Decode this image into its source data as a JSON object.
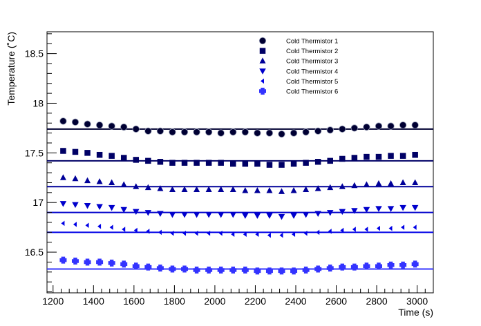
{
  "chart_data": {
    "type": "scatter",
    "title": "",
    "xlabel": "Time (s)",
    "ylabel": "Temperature (˚C)",
    "xlim": [
      1170,
      3080
    ],
    "ylim": [
      16.09,
      18.72
    ],
    "x_ticks": [
      1200,
      1400,
      1600,
      1800,
      2000,
      2200,
      2400,
      2600,
      2800,
      3000
    ],
    "x_tick_labels": [
      "1200",
      "1400",
      "1600",
      "1800",
      "2000",
      "2200",
      "2400",
      "2600",
      "2800",
      "3000"
    ],
    "y_ticks": [
      16.5,
      17,
      17.5,
      18,
      18.5
    ],
    "y_tick_labels": [
      "16.5",
      "17",
      "17.5",
      "18",
      "18.5"
    ],
    "grid": false,
    "legend_position": "top-right",
    "x": [
      1250,
      1310,
      1370,
      1430,
      1490,
      1550,
      1610,
      1670,
      1730,
      1790,
      1850,
      1910,
      1970,
      2030,
      2090,
      2150,
      2210,
      2270,
      2330,
      2390,
      2450,
      2510,
      2570,
      2630,
      2690,
      2750,
      2810,
      2870,
      2930,
      2990
    ],
    "series": [
      {
        "name": "Cold Thermistor 1",
        "marker": "circle",
        "color": "#000033",
        "fit_value": 17.74,
        "values": [
          17.82,
          17.81,
          17.79,
          17.78,
          17.77,
          17.76,
          17.74,
          17.72,
          17.72,
          17.71,
          17.71,
          17.71,
          17.71,
          17.7,
          17.71,
          17.71,
          17.7,
          17.7,
          17.69,
          17.7,
          17.71,
          17.72,
          17.73,
          17.74,
          17.75,
          17.76,
          17.77,
          17.77,
          17.78,
          17.78
        ]
      },
      {
        "name": "Cold Thermistor 2",
        "marker": "square",
        "color": "#000066",
        "fit_value": 17.42,
        "values": [
          17.52,
          17.51,
          17.5,
          17.48,
          17.47,
          17.45,
          17.43,
          17.42,
          17.41,
          17.4,
          17.4,
          17.4,
          17.4,
          17.4,
          17.39,
          17.39,
          17.39,
          17.38,
          17.38,
          17.39,
          17.4,
          17.41,
          17.42,
          17.44,
          17.45,
          17.46,
          17.46,
          17.47,
          17.47,
          17.48
        ]
      },
      {
        "name": "Cold Thermistor 3",
        "marker": "triangle-up",
        "color": "#000099",
        "fit_value": 17.16,
        "values": [
          17.25,
          17.24,
          17.22,
          17.21,
          17.2,
          17.18,
          17.16,
          17.15,
          17.14,
          17.13,
          17.13,
          17.13,
          17.13,
          17.13,
          17.13,
          17.12,
          17.12,
          17.12,
          17.11,
          17.12,
          17.13,
          17.14,
          17.15,
          17.16,
          17.17,
          17.18,
          17.19,
          17.19,
          17.2,
          17.2
        ]
      },
      {
        "name": "Cold Thermistor 4",
        "marker": "triangle-down",
        "color": "#0000cc",
        "fit_value": 16.9,
        "values": [
          16.99,
          16.98,
          16.97,
          16.96,
          16.95,
          16.93,
          16.91,
          16.9,
          16.89,
          16.88,
          16.88,
          16.88,
          16.88,
          16.88,
          16.88,
          16.87,
          16.87,
          16.87,
          16.86,
          16.87,
          16.88,
          16.89,
          16.9,
          16.91,
          16.92,
          16.93,
          16.94,
          16.94,
          16.95,
          16.95
        ]
      },
      {
        "name": "Cold Thermistor 5",
        "marker": "triangle-left",
        "color": "#0000e6",
        "fit_value": 16.7,
        "values": [
          16.79,
          16.78,
          16.77,
          16.76,
          16.75,
          16.73,
          16.72,
          16.71,
          16.7,
          16.69,
          16.69,
          16.69,
          16.69,
          16.69,
          16.68,
          16.68,
          16.68,
          16.67,
          16.67,
          16.68,
          16.69,
          16.7,
          16.71,
          16.72,
          16.73,
          16.73,
          16.74,
          16.74,
          16.75,
          16.75
        ]
      },
      {
        "name": "Cold Thermistor 6",
        "marker": "cross",
        "color": "#3333ff",
        "fit_value": 16.33,
        "values": [
          16.42,
          16.41,
          16.4,
          16.4,
          16.39,
          16.38,
          16.36,
          16.35,
          16.34,
          16.33,
          16.33,
          16.32,
          16.32,
          16.32,
          16.32,
          16.32,
          16.31,
          16.31,
          16.31,
          16.31,
          16.32,
          16.33,
          16.34,
          16.35,
          16.35,
          16.36,
          16.36,
          16.37,
          16.37,
          16.38
        ]
      }
    ]
  }
}
